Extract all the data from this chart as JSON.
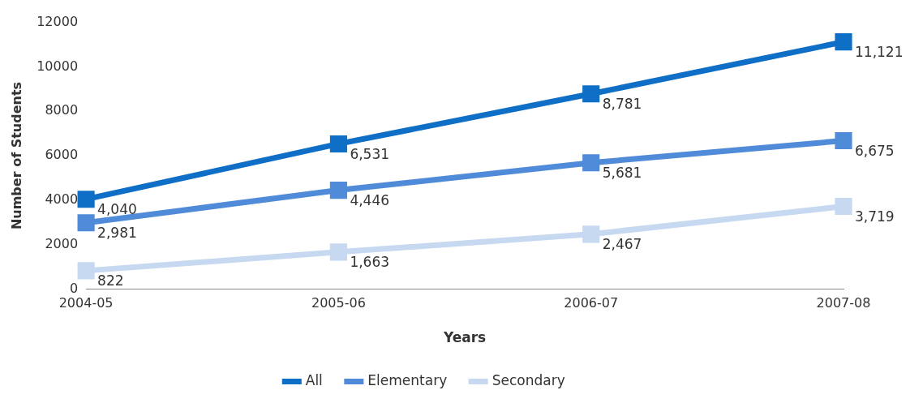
{
  "chart_data": {
    "type": "line",
    "xlabel": "Years",
    "ylabel": "Number of Students",
    "categories": [
      "2004-05",
      "2005-06",
      "2006-07",
      "2007-08"
    ],
    "series": [
      {
        "name": "All",
        "color": "#0f6fc6",
        "values": [
          4040,
          6531,
          8781,
          11121
        ],
        "value_labels": [
          "4,040",
          "6,531",
          "8,781",
          "11,121"
        ]
      },
      {
        "name": "Elementary",
        "color": "#4f8bd8",
        "values": [
          2981,
          4446,
          5681,
          6675
        ],
        "value_labels": [
          "2,981",
          "4,446",
          "5,681",
          "6,675"
        ]
      },
      {
        "name": "Secondary",
        "color": "#c6d9f1",
        "values": [
          822,
          1663,
          2467,
          3719
        ],
        "value_labels": [
          "822",
          "1,663",
          "2,467",
          "3,719"
        ]
      }
    ],
    "ylim": [
      0,
      12000
    ],
    "yticks": [
      0,
      2000,
      4000,
      6000,
      8000,
      10000,
      12000
    ],
    "grid": false,
    "legend": "bottom",
    "marker": "square",
    "line_style": "solid"
  }
}
